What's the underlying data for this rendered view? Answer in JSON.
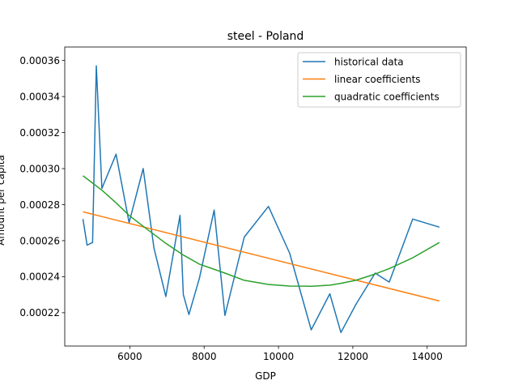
{
  "chart_data": {
    "type": "line",
    "title": "steel - Poland",
    "xlabel": "GDP",
    "ylabel": "Amount per capita",
    "xlim": [
      4250,
      15050
    ],
    "ylim": [
      0.0002015,
      0.0003675
    ],
    "xticks": [
      6000,
      8000,
      10000,
      12000,
      14000
    ],
    "yticks": [
      0.00022,
      0.00024,
      0.00026,
      0.00028,
      0.0003,
      0.00032,
      0.00034,
      0.00036
    ],
    "grid": false,
    "legend_position": "top-right",
    "series": [
      {
        "name": "historical data",
        "color": "#1f77b4",
        "x": [
          4740,
          4850,
          5000,
          5100,
          5250,
          5630,
          5980,
          6360,
          6650,
          6970,
          7350,
          7440,
          7590,
          7870,
          8270,
          8560,
          9080,
          9730,
          10300,
          10880,
          11380,
          11680,
          12080,
          12600,
          12980,
          13610,
          14330
        ],
        "y": [
          0.000272,
          0.0002575,
          0.000259,
          0.000357,
          0.000289,
          0.000308,
          0.00027,
          0.0003,
          0.000256,
          0.000229,
          0.000274,
          0.00023,
          0.000219,
          0.000239,
          0.000277,
          0.0002185,
          0.000262,
          0.000279,
          0.000253,
          0.0002105,
          0.0002305,
          0.000209,
          0.0002245,
          0.000242,
          0.000237,
          0.000272,
          0.0002675
        ]
      },
      {
        "name": "linear coefficients",
        "color": "#ff7f0e",
        "x": [
          4740,
          14330
        ],
        "y": [
          0.000276,
          0.0002265
        ]
      },
      {
        "name": "quadratic coefficients",
        "color": "#2ca02c",
        "x": [
          4740,
          5250,
          5630,
          5980,
          6360,
          6970,
          7440,
          7870,
          8560,
          9080,
          9730,
          10300,
          10880,
          11380,
          11680,
          12080,
          12600,
          12980,
          13610,
          14330
        ],
        "y": [
          0.000296,
          0.000288,
          0.000281,
          0.000274,
          0.000268,
          0.0002585,
          0.000252,
          0.000247,
          0.000242,
          0.000238,
          0.0002357,
          0.0002348,
          0.0002347,
          0.0002353,
          0.0002363,
          0.000238,
          0.0002415,
          0.0002445,
          0.0002505,
          0.000259
        ]
      }
    ]
  }
}
